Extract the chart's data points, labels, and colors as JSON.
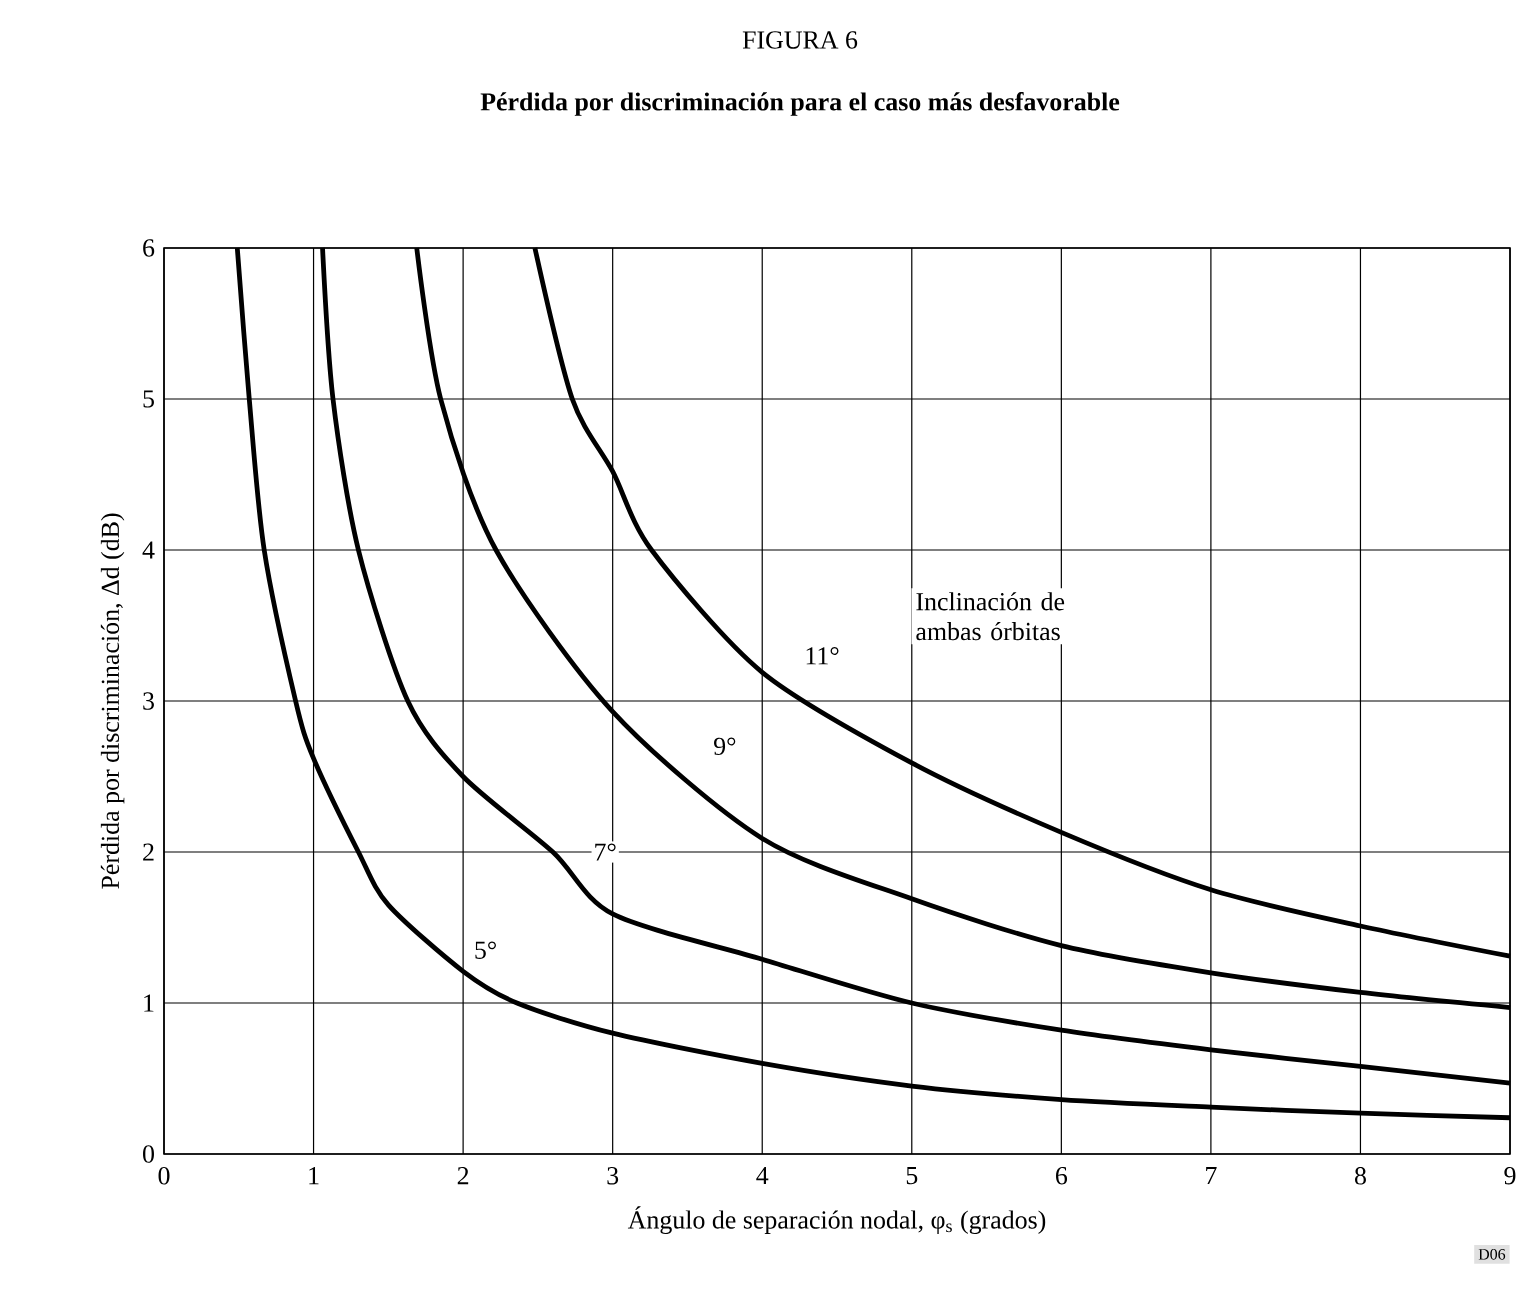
{
  "chart_data": {
    "type": "line",
    "title": "FIGURA 6",
    "subtitle": "Pérdida por discriminación para el caso más desfavorable",
    "xlabel": "Ángulo de separación nodal, φ$_{s}$ (grados)",
    "ylabel": "Pérdida por discriminación, Δd (dB)",
    "xlim": [
      0,
      9
    ],
    "ylim": [
      0,
      6
    ],
    "xticks": [
      0,
      1,
      2,
      3,
      4,
      5,
      6,
      7,
      8,
      9
    ],
    "yticks": [
      0,
      1,
      2,
      3,
      4,
      5,
      6
    ],
    "grid": true,
    "series": [
      {
        "color": "#000000",
        "x": [
          0.49,
          0.57,
          0.67,
          0.88,
          1.0,
          1.3,
          1.5,
          2.0,
          2.36,
          3.0,
          4.0,
          5.0,
          6.0,
          7.0,
          8.0,
          9.0
        ],
        "values": [
          6,
          5,
          4,
          3,
          2.62,
          2,
          1.65,
          1.21,
          1,
          0.8,
          0.6,
          0.45,
          0.36,
          0.31,
          0.27,
          0.24
        ]
      },
      {
        "color": "#000000",
        "x": [
          1.06,
          1.13,
          1.3,
          1.63,
          2.0,
          2.6,
          3.0,
          4.0,
          5.0,
          6.0,
          7.0,
          8.0,
          9.0
        ],
        "values": [
          6,
          5,
          4,
          3,
          2.5,
          2,
          1.59,
          1.29,
          1.0,
          0.82,
          0.69,
          0.58,
          0.47
        ]
      },
      {
        "color": "#000000",
        "x": [
          1.69,
          1.85,
          2.22,
          3.0,
          4.0,
          5.0,
          6.0,
          7.0,
          8.0,
          9.0
        ],
        "values": [
          6,
          5,
          4,
          2.93,
          2.09,
          1.69,
          1.38,
          1.2,
          1.07,
          0.97
        ]
      },
      {
        "color": "#000000",
        "x": [
          2.48,
          2.73,
          3.0,
          3.26,
          4.0,
          5.0,
          6.0,
          7.0,
          8.0,
          9.0
        ],
        "values": [
          6,
          5,
          4.52,
          4,
          3.19,
          2.59,
          2.13,
          1.75,
          1.51,
          1.31
        ]
      }
    ],
    "annotations": [
      {
        "text": "5°",
        "x": 2.15,
        "y": 1.35
      },
      {
        "text": "7°",
        "x": 2.95,
        "y": 2.0
      },
      {
        "text": "9°",
        "x": 3.75,
        "y": 2.7
      },
      {
        "text": "11°",
        "x": 4.4,
        "y": 3.3
      },
      "Inclinación de ambas órbitas",
      "D06"
    ]
  }
}
